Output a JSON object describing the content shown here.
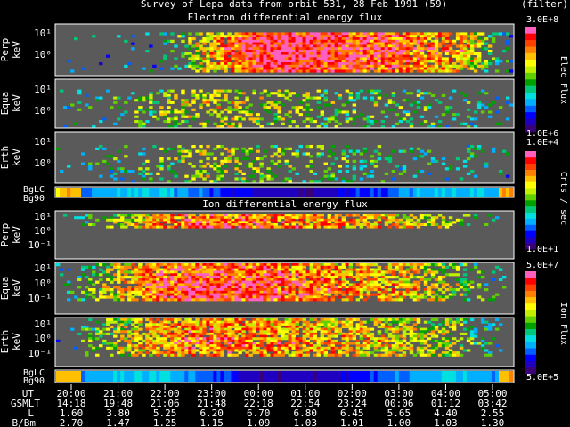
{
  "header": {
    "title": "Survey of Lepa data from orbit 531, 28 Feb 1991 (59)",
    "filter": "(filter)"
  },
  "panels": {
    "electron_title": "Electron differential energy flux",
    "ion_title": "Ion differential energy flux",
    "perp": "Perp",
    "equa": "Equa",
    "erth": "Erth",
    "unit": "keV",
    "bglc": "BgLC",
    "bg90": "Bg90"
  },
  "colorbars": {
    "elec": {
      "max": "3.0E+8",
      "min": "1.0E+6",
      "label": "Elec Flux"
    },
    "cnts": {
      "max": "1.0E+4",
      "min": "1.0E+1",
      "label": "Cnts / sec"
    },
    "ion": {
      "max": "5.0E+7",
      "min": "5.0E+5",
      "label": "Ion Flux"
    }
  },
  "colors": {
    "background": "#000000",
    "plot_fill": "#5a5a5a",
    "palette": [
      "#3a0078",
      "#2000c0",
      "#0000ff",
      "#0060ff",
      "#00b0ff",
      "#00e0e0",
      "#00c878",
      "#00a000",
      "#60d000",
      "#c0f000",
      "#ffff00",
      "#ffc000",
      "#ff8000",
      "#ff4000",
      "#ff0000",
      "#ff60c0"
    ]
  },
  "chart_data": {
    "type": "heatmap",
    "time_axis": {
      "row_labels": [
        "UT",
        "GSMLT",
        "L",
        "B/Bm"
      ],
      "UT": [
        "20:00",
        "21:00",
        "22:00",
        "23:00",
        "00:00",
        "01:00",
        "02:00",
        "03:00",
        "04:00",
        "05:00"
      ],
      "GSMLT": [
        "14:18",
        "19:48",
        "21:06",
        "21:48",
        "22:18",
        "22:54",
        "23:24",
        "00:06",
        "01:12",
        "03:42"
      ],
      "L": [
        "1.60",
        "3.80",
        "5.25",
        "6.20",
        "6.70",
        "6.80",
        "6.45",
        "5.65",
        "4.40",
        "2.55"
      ],
      "B_Bm": [
        "2.70",
        "1.47",
        "1.25",
        "1.15",
        "1.09",
        "1.03",
        "1.01",
        "1.00",
        "1.03",
        "1.30"
      ]
    },
    "energy_ticks": {
      "electron": [
        "10¹",
        "10⁰"
      ],
      "ion": [
        "10¹",
        "10⁰",
        "10⁻¹"
      ]
    },
    "series": [
      {
        "name": "Electron Perp",
        "intensity": [
          0,
          0,
          0.05,
          0.45,
          0.7,
          0.7,
          0.62,
          0.58,
          0.5,
          0.05
        ]
      },
      {
        "name": "Electron Equa",
        "intensity": [
          0.05,
          0.1,
          0.28,
          0.42,
          0.35,
          0.28,
          0.24,
          0.2,
          0.14,
          0.08
        ]
      },
      {
        "name": "Electron Erth",
        "intensity": [
          0.05,
          0.08,
          0.22,
          0.36,
          0.3,
          0.22,
          0.18,
          0.12,
          0.1,
          0.05
        ]
      },
      {
        "name": "Ion Perp",
        "intensity": [
          0,
          0.3,
          0.55,
          0.6,
          0.6,
          0.55,
          0.5,
          0.42,
          0.25,
          0
        ]
      },
      {
        "name": "Ion Equa",
        "intensity": [
          0,
          0.35,
          0.6,
          0.65,
          0.62,
          0.55,
          0.5,
          0.45,
          0.3,
          0
        ]
      },
      {
        "name": "Ion Erth",
        "intensity": [
          0,
          0.3,
          0.5,
          0.55,
          0.52,
          0.48,
          0.45,
          0.4,
          0.28,
          0
        ]
      }
    ]
  }
}
